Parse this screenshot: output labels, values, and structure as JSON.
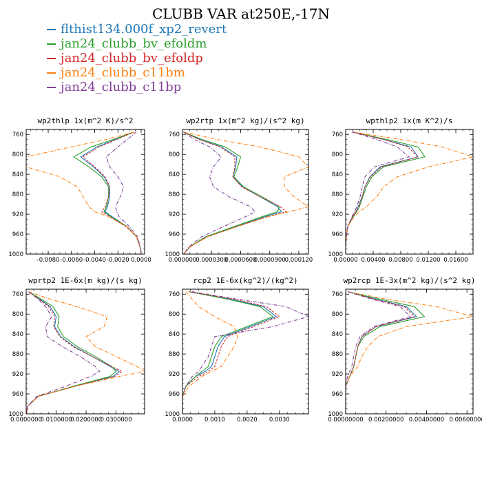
{
  "title": "CLUBB VAR at250E,-17N",
  "legend": [
    {
      "name": "flthist134.000f_xp2_revert",
      "color": "#1f77b4"
    },
    {
      "name": "jan24_clubb_bv_efoldm",
      "color": "#2ca02c"
    },
    {
      "name": "jan24_clubb_bv_efoldp",
      "color": "#d62728"
    },
    {
      "name": "jan24_clubb_c11bm",
      "color": "#ff7f0e"
    },
    {
      "name": "jan24_clubb_c11bp",
      "color": "#7f3f98"
    }
  ],
  "chart_data": [
    {
      "type": "line",
      "title": "wp2thlp  1x(m^2 K)/s^2",
      "ylim": [
        1000,
        750
      ],
      "xlim": [
        -0.0099,
        0.0003
      ],
      "yticks": [
        "760",
        "800",
        "840",
        "880",
        "920",
        "960",
        "1000"
      ],
      "xticks": [
        "-0.0080",
        "-0.0060",
        "-0.0040",
        "-0.0020",
        "0.0000"
      ],
      "xtick_values": [
        -0.008,
        -0.006,
        -0.004,
        -0.002,
        0.0
      ],
      "y": [
        755,
        770,
        785,
        805,
        825,
        845,
        865,
        885,
        905,
        915,
        925,
        945,
        965,
        985,
        1000
      ],
      "series": [
        {
          "name": "flthist134.000f_xp2_revert",
          "values": [
            -0.0006,
            -0.0022,
            -0.0038,
            -0.0052,
            -0.0041,
            -0.0032,
            -0.0027,
            -0.0027,
            -0.0029,
            -0.0031,
            -0.0025,
            -0.0012,
            -0.0004,
            -0.0001,
            0.0
          ]
        },
        {
          "name": "jan24_clubb_bv_efoldm",
          "values": [
            -0.0006,
            -0.0024,
            -0.0043,
            -0.0058,
            -0.0045,
            -0.0034,
            -0.0028,
            -0.0028,
            -0.003,
            -0.0032,
            -0.0026,
            -0.0012,
            -0.0004,
            -0.0001,
            0.0
          ]
        },
        {
          "name": "jan24_clubb_bv_efoldp",
          "values": [
            -0.0006,
            -0.0021,
            -0.0036,
            -0.005,
            -0.004,
            -0.0031,
            -0.0027,
            -0.0028,
            -0.0031,
            -0.0034,
            -0.0027,
            -0.0013,
            -0.0004,
            -0.0001,
            0.0
          ]
        },
        {
          "name": "jan24_clubb_c11bm",
          "values": [
            -0.0006,
            -0.003,
            -0.006,
            -0.0099,
            -0.0099,
            -0.007,
            -0.0055,
            -0.005,
            -0.0045,
            -0.004,
            -0.0028,
            -0.0012,
            -0.0004,
            -0.0001,
            0.0
          ]
        },
        {
          "name": "jan24_clubb_c11bp",
          "values": [
            -0.0004,
            -0.0012,
            -0.002,
            -0.003,
            -0.0027,
            -0.002,
            -0.0015,
            -0.0018,
            -0.0022,
            -0.0021,
            -0.0019,
            -0.001,
            -0.0003,
            -0.0001,
            0.0
          ]
        }
      ]
    },
    {
      "type": "line",
      "title": "wp2rtp  1x(m^2 kg)/(s^2 kg)",
      "ylim": [
        1000,
        750
      ],
      "xlim": [
        0.0,
        0.00013
      ],
      "yticks": [
        "760",
        "800",
        "840",
        "880",
        "920",
        "960",
        "1000"
      ],
      "xticks": [
        "0.000000",
        "0.0000300",
        "0.0000600",
        "0.0000900",
        "0.000120"
      ],
      "xtick_values": [
        0.0,
        3e-05,
        6e-05,
        9e-05,
        0.00012
      ],
      "y": [
        755,
        770,
        785,
        805,
        825,
        845,
        865,
        885,
        905,
        915,
        925,
        945,
        965,
        985,
        1000
      ],
      "series": [
        {
          "name": "flthist134.000f_xp2_revert",
          "values": [
            1e-06,
            1.8e-05,
            4e-05,
            5.6e-05,
            5.5e-05,
            5.2e-05,
            6.2e-05,
            8e-05,
            9.8e-05,
            0.000102,
            8.5e-05,
            5.5e-05,
            2.5e-05,
            8e-06,
            1e-06
          ]
        },
        {
          "name": "jan24_clubb_bv_efoldm",
          "values": [
            1e-06,
            2e-05,
            4.4e-05,
            6e-05,
            5.7e-05,
            5.3e-05,
            6.3e-05,
            8.2e-05,
            0.0001,
            9.8e-05,
            8.2e-05,
            5.3e-05,
            2.4e-05,
            8e-06,
            1e-06
          ]
        },
        {
          "name": "jan24_clubb_bv_efoldp",
          "values": [
            1e-06,
            1.7e-05,
            3.9e-05,
            5.4e-05,
            5.4e-05,
            5.2e-05,
            6.1e-05,
            8e-05,
            0.000101,
            0.000107,
            8.8e-05,
            5.6e-05,
            2.6e-05,
            8e-06,
            1e-06
          ]
        },
        {
          "name": "jan24_clubb_c11bm",
          "values": [
            1e-06,
            3.5e-05,
            8e-05,
            0.00012,
            0.00013,
            0.000105,
            0.000105,
            0.000115,
            0.00013,
            0.00011,
            8.8e-05,
            5.6e-05,
            2.6e-05,
            8e-06,
            1e-06
          ]
        },
        {
          "name": "jan24_clubb_c11bp",
          "values": [
            1e-06,
            1.2e-05,
            2.8e-05,
            4e-05,
            3.2e-05,
            2.8e-05,
            3.2e-05,
            4.8e-05,
            7e-05,
            7.5e-05,
            6.5e-05,
            4.2e-05,
            2e-05,
            7e-06,
            1e-06
          ]
        }
      ]
    },
    {
      "type": "line",
      "title": "wpthlp2  1x(m K^2)/s",
      "ylim": [
        1000,
        750
      ],
      "xlim": [
        0.0,
        0.0185
      ],
      "yticks": [
        "760",
        "800",
        "840",
        "880",
        "920",
        "960",
        "1000"
      ],
      "xticks": [
        "0.00000",
        "0.00400",
        "0.00800",
        "0.01200",
        "0.01600"
      ],
      "xtick_values": [
        0.0,
        0.004,
        0.008,
        0.012,
        0.016
      ],
      "y": [
        755,
        770,
        785,
        805,
        825,
        845,
        865,
        885,
        905,
        915,
        925,
        945,
        965,
        985,
        1000
      ],
      "series": [
        {
          "name": "flthist134.000f_xp2_revert",
          "values": [
            0.001,
            0.0055,
            0.0095,
            0.0105,
            0.005,
            0.0035,
            0.0028,
            0.0024,
            0.0018,
            0.0015,
            0.001,
            0.0003,
            0.0001,
            0.0,
            0.0
          ]
        },
        {
          "name": "jan24_clubb_bv_efoldm",
          "values": [
            0.001,
            0.006,
            0.0105,
            0.0115,
            0.0055,
            0.0038,
            0.003,
            0.0025,
            0.002,
            0.0016,
            0.0011,
            0.0003,
            0.0001,
            0.0,
            0.0
          ]
        },
        {
          "name": "jan24_clubb_bv_efoldp",
          "values": [
            0.001,
            0.0055,
            0.009,
            0.0105,
            0.0052,
            0.0036,
            0.0028,
            0.0024,
            0.0019,
            0.0015,
            0.001,
            0.0003,
            0.0001,
            0.0,
            0.0
          ]
        },
        {
          "name": "jan24_clubb_c11bm",
          "values": [
            0.001,
            0.008,
            0.014,
            0.0185,
            0.012,
            0.0075,
            0.0055,
            0.0045,
            0.003,
            0.002,
            0.0012,
            0.0003,
            0.0001,
            0.0,
            0.0
          ]
        },
        {
          "name": "jan24_clubb_c11bp",
          "values": [
            0.0009,
            0.0045,
            0.0075,
            0.0092,
            0.0042,
            0.0028,
            0.0024,
            0.0021,
            0.0016,
            0.0013,
            0.0009,
            0.0003,
            0.0001,
            0.0,
            0.0
          ]
        }
      ]
    },
    {
      "type": "line",
      "title": "wprtp2  1E-6x(m kg)/(s kg)",
      "ylim": [
        1000,
        750
      ],
      "xlim": [
        0.0,
        0.0395
      ],
      "yticks": [
        "760",
        "800",
        "840",
        "880",
        "920",
        "960",
        "1000"
      ],
      "xticks": [
        "0.0000000",
        "0.0100000",
        "0.0200000",
        "0.0300000"
      ],
      "xtick_values": [
        0.0,
        0.01,
        0.02,
        0.03
      ],
      "y": [
        755,
        770,
        785,
        805,
        825,
        845,
        865,
        885,
        905,
        915,
        925,
        945,
        965,
        985,
        1000
      ],
      "series": [
        {
          "name": "flthist134.000f_xp2_revert",
          "values": [
            0.0008,
            0.0045,
            0.008,
            0.01,
            0.0095,
            0.0115,
            0.016,
            0.022,
            0.028,
            0.031,
            0.029,
            0.016,
            0.004,
            0.0005,
            0.0001
          ]
        },
        {
          "name": "jan24_clubb_bv_efoldm",
          "values": [
            0.0008,
            0.005,
            0.009,
            0.011,
            0.0105,
            0.0125,
            0.017,
            0.023,
            0.0285,
            0.03,
            0.028,
            0.0155,
            0.004,
            0.0005,
            0.0001
          ]
        },
        {
          "name": "jan24_clubb_bv_efoldp",
          "values": [
            0.0008,
            0.0043,
            0.0075,
            0.0095,
            0.0092,
            0.0112,
            0.0155,
            0.022,
            0.0285,
            0.032,
            0.0295,
            0.016,
            0.004,
            0.0005,
            0.0001
          ]
        },
        {
          "name": "jan24_clubb_c11bm",
          "values": [
            0.0008,
            0.008,
            0.017,
            0.027,
            0.026,
            0.02,
            0.023,
            0.03,
            0.037,
            0.0395,
            0.031,
            0.016,
            0.004,
            0.0005,
            0.0001
          ]
        },
        {
          "name": "jan24_clubb_c11bp",
          "values": [
            0.0008,
            0.004,
            0.0065,
            0.0085,
            0.0065,
            0.007,
            0.012,
            0.018,
            0.023,
            0.0245,
            0.0215,
            0.013,
            0.0035,
            0.0005,
            0.0001
          ]
        }
      ]
    },
    {
      "type": "line",
      "title": "rcp2  1E-6x(kg^2)/(kg^2)",
      "ylim": [
        1000,
        750
      ],
      "xlim": [
        0.0,
        0.0039
      ],
      "yticks": [
        "760",
        "800",
        "840",
        "880",
        "920",
        "960",
        "1000"
      ],
      "xticks": [
        "0.0000",
        "0.0010",
        "0.0020",
        "0.0030"
      ],
      "xtick_values": [
        0.0,
        0.001,
        0.002,
        0.003
      ],
      "y": [
        755,
        770,
        785,
        805,
        825,
        845,
        865,
        885,
        905,
        915,
        925,
        945,
        965,
        985,
        1000
      ],
      "series": [
        {
          "name": "flthist134.000f_xp2_revert",
          "values": [
            0.0002,
            0.0015,
            0.0025,
            0.0029,
            0.0021,
            0.0013,
            0.0011,
            0.001,
            0.0009,
            0.0007,
            0.0004,
            0.0001,
            0.0,
            0.0,
            0.0
          ]
        },
        {
          "name": "jan24_clubb_bv_efoldm",
          "values": [
            0.0002,
            0.0014,
            0.0024,
            0.0028,
            0.002,
            0.0012,
            0.001,
            0.0009,
            0.0008,
            0.0006,
            0.0004,
            0.0001,
            0.0,
            0.0,
            0.0
          ]
        },
        {
          "name": "jan24_clubb_bv_efoldp",
          "values": [
            0.0002,
            0.0016,
            0.0026,
            0.003,
            0.0022,
            0.0014,
            0.0012,
            0.0011,
            0.001,
            0.0008,
            0.0005,
            0.0001,
            0.0,
            0.0,
            0.0
          ]
        },
        {
          "name": "jan24_clubb_c11bm",
          "values": [
            0.0001,
            0.0003,
            0.0005,
            0.001,
            0.0016,
            0.0017,
            0.0016,
            0.0014,
            0.0012,
            0.0009,
            0.0006,
            0.0002,
            0.0,
            0.0,
            0.0
          ]
        },
        {
          "name": "jan24_clubb_c11bp",
          "values": [
            0.0003,
            0.0017,
            0.0032,
            0.0039,
            0.0028,
            0.001,
            0.0009,
            0.0008,
            0.0006,
            0.0005,
            0.0003,
            0.0001,
            0.0,
            0.0,
            0.0
          ]
        }
      ]
    },
    {
      "type": "line",
      "title": "wp2rcp  1E-3x(m^2 kg)/(s^2 kg)",
      "ylim": [
        1000,
        750
      ],
      "xlim": [
        0.0,
        0.0063
      ],
      "yticks": [
        "760",
        "800",
        "840",
        "880",
        "920",
        "960",
        "1000"
      ],
      "xticks": [
        "0.00000000",
        "0.00200000",
        "0.00400000",
        "0.00600000"
      ],
      "xtick_values": [
        0.0,
        0.002,
        0.004,
        0.006
      ],
      "y": [
        755,
        770,
        785,
        805,
        825,
        845,
        865,
        885,
        905,
        915,
        925,
        945,
        965,
        985,
        1000
      ],
      "series": [
        {
          "name": "flthist134.000f_xp2_revert",
          "values": [
            0.0001,
            0.0015,
            0.003,
            0.0035,
            0.0015,
            0.0008,
            0.0006,
            0.0005,
            0.0004,
            0.0003,
            0.0002,
            0.0,
            0.0,
            0.0,
            0.0
          ]
        },
        {
          "name": "jan24_clubb_bv_efoldm",
          "values": [
            0.0001,
            0.0017,
            0.0034,
            0.0039,
            0.0017,
            0.0009,
            0.0006,
            0.0005,
            0.0004,
            0.0003,
            0.0002,
            0.0,
            0.0,
            0.0,
            0.0
          ]
        },
        {
          "name": "jan24_clubb_bv_efoldp",
          "values": [
            0.0001,
            0.0014,
            0.0029,
            0.0034,
            0.0015,
            0.0008,
            0.0006,
            0.0005,
            0.0004,
            0.0003,
            0.0002,
            0.0,
            0.0,
            0.0,
            0.0
          ]
        },
        {
          "name": "jan24_clubb_c11bm",
          "values": [
            0.0001,
            0.002,
            0.0045,
            0.0063,
            0.003,
            0.0016,
            0.0011,
            0.0008,
            0.0006,
            0.0004,
            0.0002,
            0.0,
            0.0,
            0.0,
            0.0
          ]
        },
        {
          "name": "jan24_clubb_c11bp",
          "values": [
            0.0001,
            0.0013,
            0.0027,
            0.0032,
            0.0014,
            0.0007,
            0.0005,
            0.0004,
            0.0003,
            0.0002,
            0.0001,
            0.0,
            0.0,
            0.0,
            0.0
          ]
        }
      ]
    }
  ]
}
